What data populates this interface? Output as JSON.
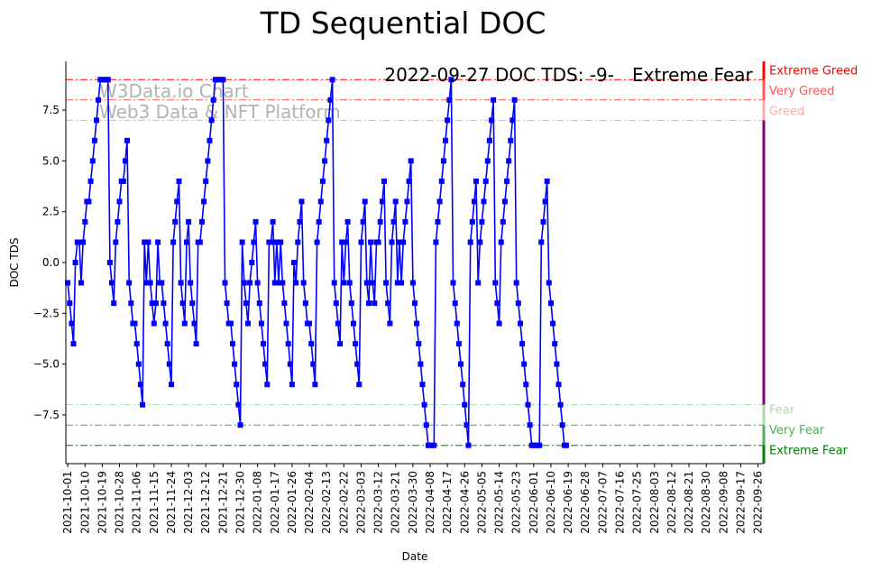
{
  "chart_data": {
    "type": "line",
    "title": "TD Sequential DOC",
    "xlabel": "Date",
    "ylabel": "DOC TDS",
    "ylim": [
      -9.9,
      9.9
    ],
    "xlim": [
      "2021-09-30",
      "2022-09-29"
    ],
    "grid": false,
    "line_color": "#0000ff",
    "marker": "square",
    "x_ticks": [
      "2021-10-01",
      "2021-10-10",
      "2021-10-19",
      "2021-10-28",
      "2021-11-06",
      "2021-11-15",
      "2021-11-24",
      "2021-12-03",
      "2021-12-12",
      "2021-12-21",
      "2021-12-30",
      "2022-01-08",
      "2022-01-17",
      "2022-01-26",
      "2022-02-04",
      "2022-02-13",
      "2022-02-22",
      "2022-03-03",
      "2022-03-12",
      "2022-03-21",
      "2022-03-30",
      "2022-04-08",
      "2022-04-17",
      "2022-04-26",
      "2022-05-05",
      "2022-05-14",
      "2022-05-23",
      "2022-06-01",
      "2022-06-10",
      "2022-06-19",
      "2022-06-28",
      "2022-07-07",
      "2022-07-16",
      "2022-07-25",
      "2022-08-03",
      "2022-08-12",
      "2022-08-21",
      "2022-08-30",
      "2022-09-08",
      "2022-09-17",
      "2022-09-26"
    ],
    "y_ticks": [
      -7.5,
      -5.0,
      -2.5,
      0.0,
      2.5,
      5.0,
      7.5
    ],
    "y_tick_labels": [
      "−7.5",
      "−5.0",
      "−2.5",
      "0.0",
      "2.5",
      "5.0",
      "7.5"
    ],
    "start_date": "2021-10-01",
    "values": [
      -1,
      -2,
      -3,
      -4,
      0,
      1,
      1,
      -1,
      1,
      2,
      3,
      3,
      4,
      5,
      6,
      7,
      8,
      9,
      9,
      9,
      9,
      9,
      0,
      -1,
      -2,
      1,
      2,
      3,
      4,
      4,
      5,
      6,
      -1,
      -2,
      -3,
      -3,
      -4,
      -5,
      -6,
      -7,
      1,
      -1,
      1,
      -1,
      -2,
      -3,
      -2,
      1,
      -1,
      -1,
      -2,
      -3,
      -4,
      -5,
      -6,
      1,
      2,
      3,
      4,
      -1,
      -2,
      -3,
      1,
      2,
      -1,
      -2,
      -3,
      -4,
      1,
      1,
      2,
      3,
      4,
      5,
      6,
      7,
      8,
      9,
      9,
      9,
      9,
      9,
      -1,
      -2,
      -3,
      -3,
      -4,
      -5,
      -6,
      -7,
      -8,
      1,
      -1,
      -2,
      -3,
      -1,
      0,
      1,
      2,
      -1,
      -2,
      -3,
      -4,
      -5,
      -6,
      1,
      1,
      2,
      -1,
      1,
      -1,
      1,
      -1,
      -2,
      -3,
      -4,
      -5,
      -6,
      0,
      -1,
      1,
      2,
      3,
      -1,
      -2,
      -3,
      -3,
      -4,
      -5,
      -6,
      1,
      2,
      3,
      4,
      5,
      6,
      7,
      8,
      9,
      -1,
      -2,
      -3,
      -4,
      1,
      -1,
      1,
      2,
      -1,
      -2,
      -3,
      -4,
      -5,
      -6,
      1,
      2,
      3,
      -1,
      -2,
      1,
      -1,
      -2,
      1,
      1,
      2,
      3,
      4,
      -1,
      -2,
      -3,
      1,
      2,
      3,
      -1,
      1,
      -1,
      1,
      2,
      3,
      4,
      5,
      -1,
      -2,
      -3,
      -4,
      -5,
      -6,
      -7,
      -8,
      -9,
      -9,
      -9,
      -9,
      1,
      2,
      3,
      4,
      5,
      6,
      7,
      8,
      9,
      -1,
      -2,
      -3,
      -4,
      -5,
      -6,
      -7,
      -8,
      -9,
      1,
      2,
      3,
      4,
      -1,
      1,
      2,
      3,
      4,
      5,
      6,
      7,
      8,
      -1,
      -2,
      -3,
      1,
      2,
      3,
      4,
      5,
      6,
      7,
      8,
      -1,
      -2,
      -3,
      -4,
      -5,
      -6,
      -7,
      -8,
      -9,
      -9,
      -9,
      -9,
      -9,
      1,
      2,
      3,
      4,
      -1,
      -2,
      -3,
      -4,
      -5,
      -6,
      -7,
      -8,
      -9,
      -9
    ]
  },
  "annotations": {
    "status_text": "2022-09-27 DOC TDS: -9-",
    "status_level": "Extreme Fear",
    "status_level_color": "#008000",
    "watermark_line1": "W3Data.io Chart",
    "watermark_line2": "Web3 Data & NFT Platform"
  },
  "sentiment_levels": [
    {
      "label": "Extreme Greed",
      "value": 9,
      "color": "#ff0000"
    },
    {
      "label": "Very Greed",
      "value": 8,
      "color": "#ff5555"
    },
    {
      "label": "Greed",
      "value": 7,
      "color": "#ffaaaa"
    },
    {
      "label": "Fear",
      "value": -7,
      "color": "#aaddaa"
    },
    {
      "label": "Very Fear",
      "value": -8,
      "color": "#55aa55"
    },
    {
      "label": "Extreme Fear",
      "value": -9,
      "color": "#008000"
    }
  ]
}
